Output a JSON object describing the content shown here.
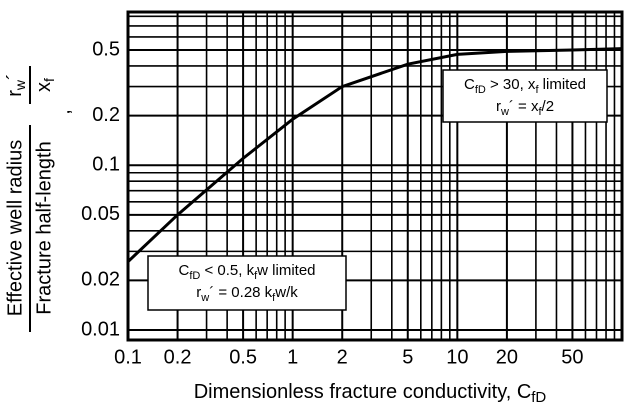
{
  "chart_data": {
    "type": "line",
    "x_label": [
      "Dimensionless fracture conductivity, C",
      "fD"
    ],
    "y_label": {
      "numerator": "Effective well radius",
      "denominator": "Fracture half-length",
      "separator": ",",
      "symbol_numerator": [
        "r",
        "w",
        "´"
      ],
      "symbol_denominator": [
        "x",
        "f"
      ]
    },
    "x": [
      0.1,
      0.2,
      0.5,
      1,
      2,
      5,
      10,
      20,
      50,
      100
    ],
    "series": [
      {
        "color": "#000000",
        "values": [
          0.026,
          0.05,
          0.11,
          0.19,
          0.3,
          0.41,
          0.47,
          0.49,
          0.5,
          0.51
        ]
      }
    ],
    "xlim": [
      0.1,
      100
    ],
    "ylim": [
      0.0087,
      0.85
    ],
    "log_x": true,
    "log_y": true,
    "grid": true,
    "xticks": [
      0.1,
      0.2,
      0.5,
      1,
      2,
      5,
      10,
      20,
      50
    ],
    "yticks": [
      0.01,
      0.02,
      0.05,
      0.1,
      0.2,
      0.5
    ],
    "x_minor_grid": [
      0.3,
      0.4,
      0.6,
      0.7,
      0.8,
      0.9,
      3,
      4,
      6,
      7,
      8,
      9,
      30,
      40,
      60,
      70,
      80,
      90
    ],
    "y_minor_grid": [
      0.03,
      0.04,
      0.06,
      0.07,
      0.08,
      0.09,
      0.3,
      0.4,
      0.6,
      0.7,
      0.8
    ],
    "annotations": [
      {
        "lines": [
          [
            "C",
            "fD",
            " > 30, x",
            "f",
            " limited"
          ],
          [
            "r",
            "w",
            "´ = x",
            "f",
            "/2"
          ]
        ]
      },
      {
        "lines": [
          [
            "C",
            "fD",
            " < 0.5, k",
            "f",
            "w limited"
          ],
          [
            "r",
            "w",
            "´ = 0.28 k",
            "f",
            "w/k"
          ]
        ]
      }
    ]
  }
}
